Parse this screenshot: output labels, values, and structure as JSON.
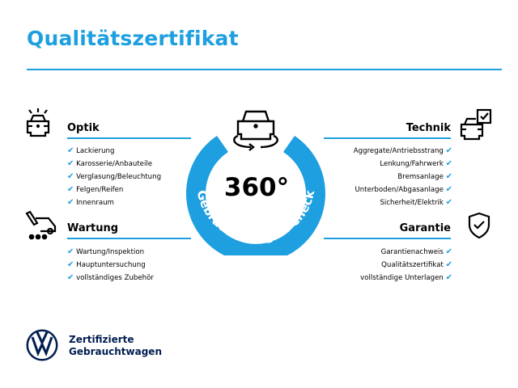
{
  "title": "Qualitätszertifikat",
  "center": {
    "big": "360°",
    "ring_text": "Gebrauchtwagen-Check"
  },
  "colors": {
    "accent": "#1e9fe0",
    "brand": "#001e50"
  },
  "sections": {
    "optik": {
      "title": "Optik",
      "icon": "car-lights-icon",
      "items": [
        "Lackierung",
        "Karosserie/Anbauteile",
        "Verglasung/Beleuchtung",
        "Felgen/Reifen",
        "Innenraum"
      ]
    },
    "wartung": {
      "title": "Wartung",
      "icon": "service-tools-icon",
      "items": [
        "Wartung/Inspektion",
        "Hauptuntersuchung",
        "vollständiges Zubehör"
      ]
    },
    "technik": {
      "title": "Technik",
      "icon": "car-checklist-icon",
      "items": [
        "Aggregate/Antriebsstrang",
        "Lenkung/Fahrwerk",
        "Bremsanlage",
        "Unterboden/Abgasanlage",
        "Sicherheit/Elektrik"
      ]
    },
    "garantie": {
      "title": "Garantie",
      "icon": "shield-check-icon",
      "items": [
        "Garantienachweis",
        "Qualitätszertifikat",
        "vollständige Unterlagen"
      ]
    }
  },
  "check_mark": "✔",
  "brand": {
    "line1": "Zertifizierte",
    "line2": "Gebrauchtwagen",
    "logo": "vw-logo"
  }
}
